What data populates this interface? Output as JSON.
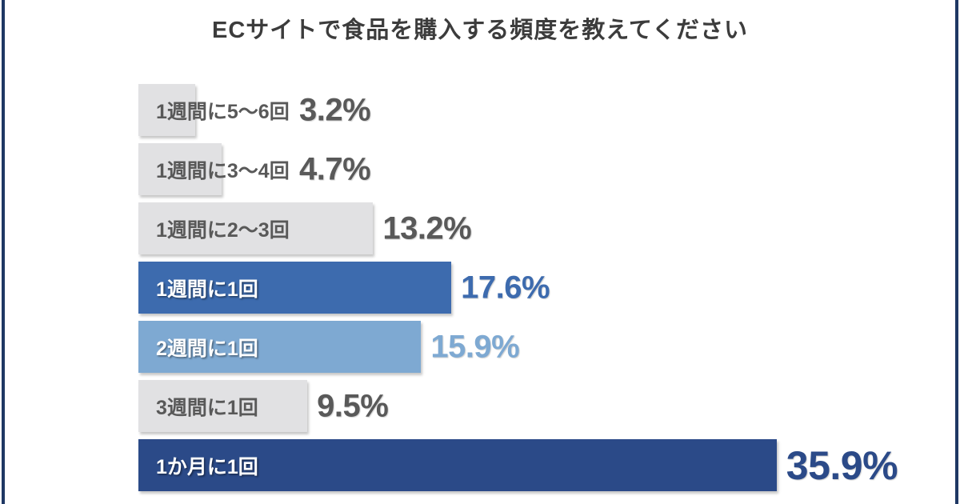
{
  "page": {
    "background": "#ffffff",
    "side_border_color": "#1f3864",
    "title_color": "#3c3c3c"
  },
  "chart_data": {
    "type": "bar",
    "orientation": "horizontal",
    "title": "ECサイトで食品を購入する頻度を教えてください",
    "categories": [
      "1週間に5〜6回",
      "1週間に3〜4回",
      "1週間に2〜3回",
      "1週間に1回",
      "2週間に1回",
      "3週間に1回",
      "1か月に1回"
    ],
    "values": [
      3.2,
      4.7,
      13.2,
      17.6,
      15.9,
      9.5,
      35.9
    ],
    "value_labels": [
      "3.2%",
      "4.7%",
      "13.2%",
      "17.6%",
      "15.9%",
      "9.5%",
      "35.9%"
    ],
    "bar_colors": [
      "#e1e1e3",
      "#e1e1e3",
      "#e1e1e3",
      "#3d6bae",
      "#7ea9d2",
      "#e1e1e3",
      "#2b4a88"
    ],
    "category_label_colors": [
      "#595959",
      "#595959",
      "#595959",
      "#ffffff",
      "#ffffff",
      "#595959",
      "#ffffff"
    ],
    "value_label_colors": [
      "#595959",
      "#595959",
      "#595959",
      "#3d6bae",
      "#7ea9d2",
      "#595959",
      "#2b4a88"
    ],
    "xlim": [
      0,
      45
    ],
    "grid": false,
    "legend": false,
    "value_labels_position": "outside-end"
  }
}
